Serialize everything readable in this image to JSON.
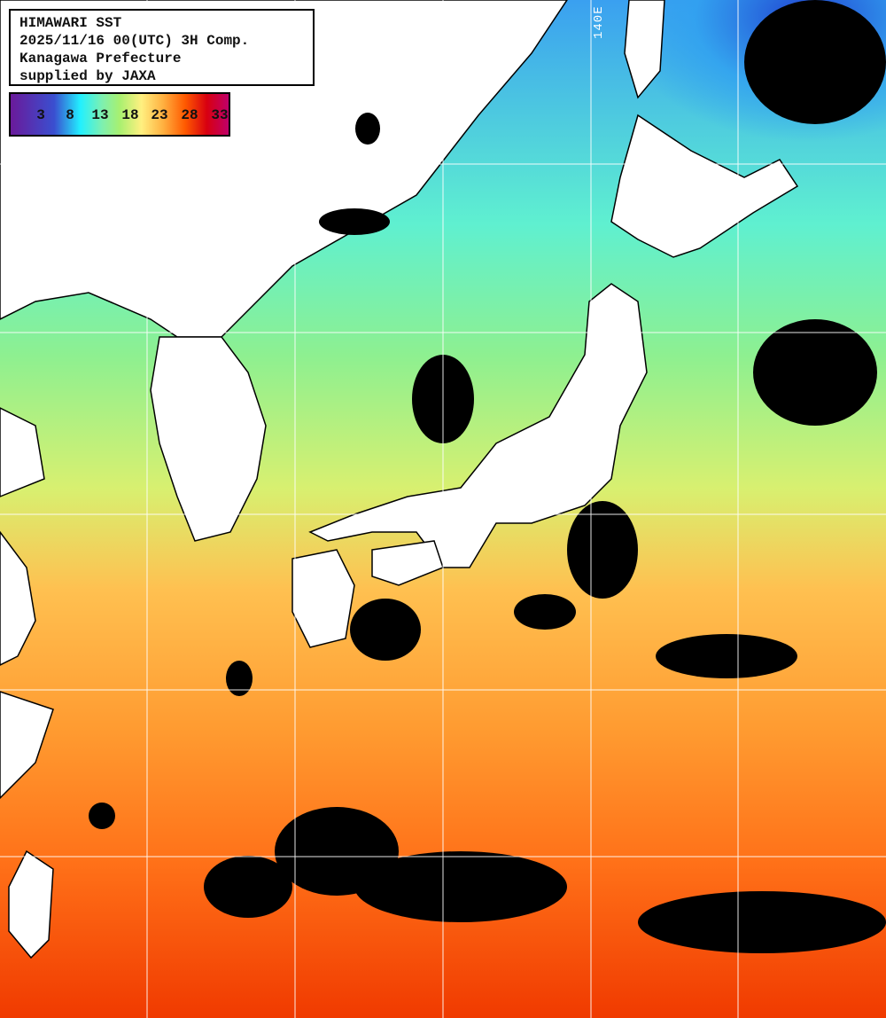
{
  "header": {
    "title": "HIMAWARI SST",
    "datetime": "2025/11/16 00(UTC) 3H Comp.",
    "provider_line": "Kanagawa Prefecture",
    "supplier_line": "supplied by JAXA"
  },
  "colorbar": {
    "ticks": [
      "3",
      "8",
      "13",
      "18",
      "23",
      "28",
      "33"
    ],
    "colors": [
      "#6a1a9a",
      "#3a4fd0",
      "#22f0ff",
      "#7ef0b0",
      "#a8f070",
      "#fff080",
      "#ffb040",
      "#ff5a00",
      "#d80010",
      "#c0006a"
    ]
  },
  "map": {
    "longitude_label": "140E",
    "land_color": "#ffffff",
    "cloud_color": "#000000",
    "grid_color": "#ffffff"
  }
}
